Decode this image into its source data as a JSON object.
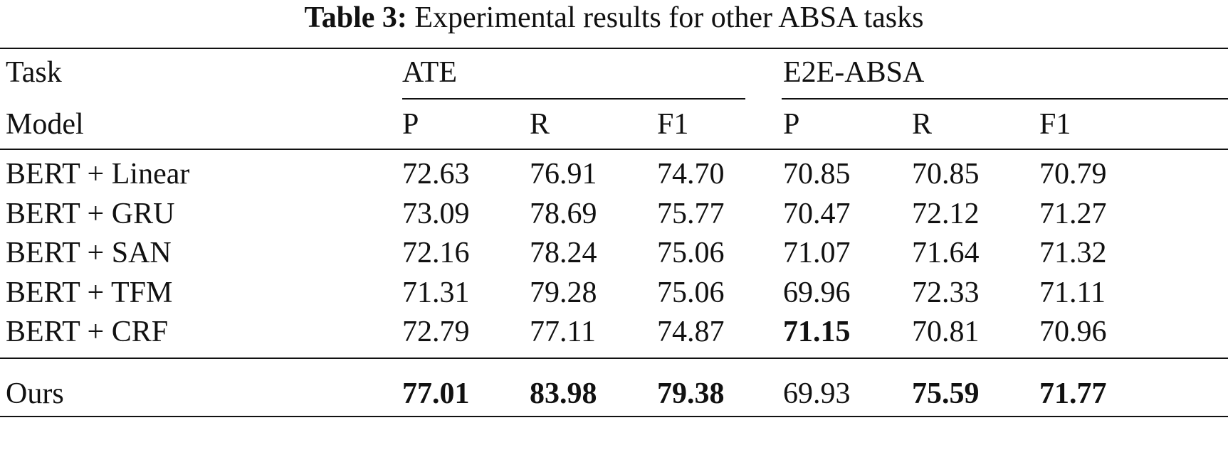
{
  "caption": {
    "label": "Table 3:",
    "text": "Experimental results for other ABSA tasks"
  },
  "header": {
    "task_label": "Task",
    "model_label": "Model",
    "groups": [
      "ATE",
      "E2E-ABSA"
    ],
    "columns": [
      "P",
      "R",
      "F1",
      "P",
      "R",
      "F1"
    ]
  },
  "rows": [
    {
      "model": "BERT + Linear",
      "values": [
        "72.63",
        "76.91",
        "74.70",
        "70.85",
        "70.85",
        "70.79"
      ],
      "bold": [
        false,
        false,
        false,
        false,
        false,
        false
      ]
    },
    {
      "model": "BERT + GRU",
      "values": [
        "73.09",
        "78.69",
        "75.77",
        "70.47",
        "72.12",
        "71.27"
      ],
      "bold": [
        false,
        false,
        false,
        false,
        false,
        false
      ]
    },
    {
      "model": "BERT + SAN",
      "values": [
        "72.16",
        "78.24",
        "75.06",
        "71.07",
        "71.64",
        "71.32"
      ],
      "bold": [
        false,
        false,
        false,
        false,
        false,
        false
      ]
    },
    {
      "model": "BERT + TFM",
      "values": [
        "71.31",
        "79.28",
        "75.06",
        "69.96",
        "72.33",
        "71.11"
      ],
      "bold": [
        false,
        false,
        false,
        false,
        false,
        false
      ]
    },
    {
      "model": "BERT + CRF",
      "values": [
        "72.79",
        "77.11",
        "74.87",
        "71.15",
        "70.81",
        "70.96"
      ],
      "bold": [
        false,
        false,
        false,
        true,
        false,
        false
      ]
    }
  ],
  "ours": {
    "model": "Ours",
    "values": [
      "77.01",
      "83.98",
      "79.38",
      "69.93",
      "75.59",
      "71.77"
    ],
    "bold": [
      true,
      true,
      true,
      false,
      true,
      true
    ]
  }
}
